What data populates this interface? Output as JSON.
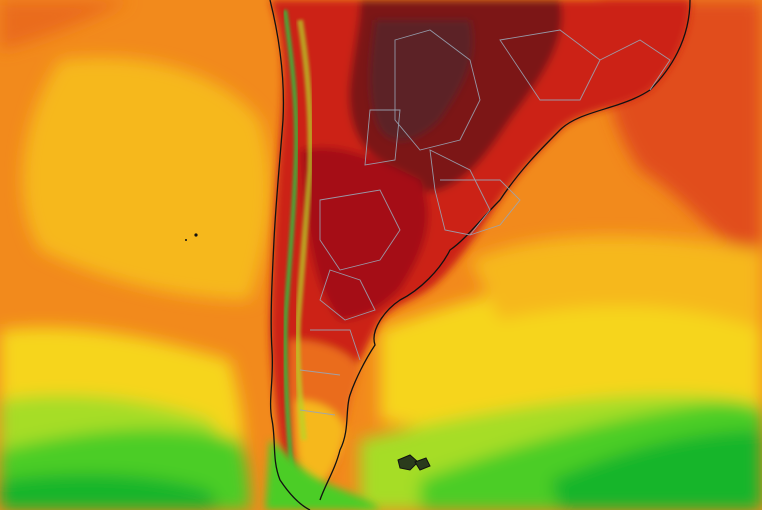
{
  "map": {
    "region": "southern-south-america",
    "field": "temperature-heatmap",
    "legend_visible": false,
    "palette": {
      "cold_green": "#19b52c",
      "green": "#4ccd27",
      "lime": "#a6dd28",
      "yellow": "#f6d51c",
      "gold": "#f6b81b",
      "orange": "#f28a1c",
      "dark_orange": "#ea6c1d",
      "red_orange": "#e14e1d",
      "red": "#cc2219",
      "crimson": "#a50d13",
      "maroon": "#7b1418",
      "dark_maroon": "#5c2327",
      "border": "#9aa5b5",
      "coastline": "#111111"
    },
    "features": [
      "land-heat-core",
      "andes-cool-strip",
      "ocean-warm-bands",
      "southern-cool-green",
      "falkland-islands",
      "political-borders"
    ]
  }
}
